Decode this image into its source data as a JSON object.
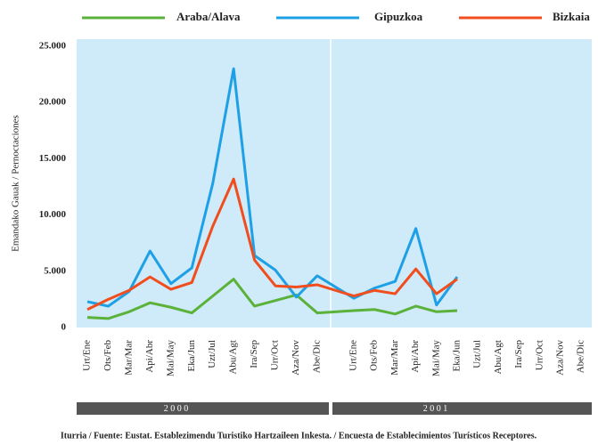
{
  "chart_data": {
    "type": "line",
    "y_label": "Emandako Gauak / Pernoctaciones",
    "categories": [
      "Urt/Ene",
      "Ots/Feb",
      "Mar/Mar",
      "Api/Abr",
      "Mai/May",
      "Eka/Jun",
      "Uzt/Jul",
      "Abu/Agt",
      "Ira/Sep",
      "Urr/Oct",
      "Aza/Nov",
      "Abe/Dic",
      "Urt/Ene",
      "Ots/Feb",
      "Mar/Mar",
      "Api/Abr",
      "Mai/May",
      "Eka/Jun",
      "Uzt/Jul",
      "Abu/Agt",
      "Ira/Sep",
      "Urr/Oct",
      "Aza/Nov",
      "Abe/Dic"
    ],
    "series": [
      {
        "name": "Araba/Alava",
        "color": "#5bb23a",
        "values": [
          900,
          800,
          1400,
          2200,
          1800,
          1300,
          2800,
          4300,
          1900,
          2400,
          2900,
          1300,
          1500,
          1600,
          1200,
          1900,
          1400,
          1500,
          null,
          null,
          null,
          null,
          null,
          null
        ]
      },
      {
        "name": "Gipuzkoa",
        "color": "#1ea0e6",
        "values": [
          2300,
          1900,
          3200,
          6800,
          3900,
          5300,
          12800,
          23000,
          6400,
          5100,
          2700,
          4600,
          2600,
          3500,
          4100,
          8800,
          2000,
          4500,
          null,
          null,
          null,
          null,
          null,
          null
        ]
      },
      {
        "name": "Bizkaia",
        "color": "#f04e1e",
        "values": [
          1600,
          2500,
          3300,
          4500,
          3400,
          4000,
          9000,
          13200,
          6000,
          3700,
          3600,
          3800,
          2800,
          3300,
          3000,
          5200,
          3000,
          4300,
          null,
          null,
          null,
          null,
          null,
          null
        ]
      }
    ],
    "ylim": [
      0,
      25000
    ],
    "yticks": [
      0,
      {
        "value": 5000,
        "label": "5.000"
      },
      {
        "value": 10000,
        "label": "10.000"
      },
      {
        "value": 15000,
        "label": "15.000"
      },
      {
        "value": 20000,
        "label": "20.000"
      },
      {
        "value": 25000,
        "label": "25.000"
      }
    ],
    "years": [
      "2 0 0 0",
      "2 0 0 1"
    ],
    "source": "Iturria / Fuente: Eustat. Establezimendu Turistiko Hartzaileen Inkesta. / Encuesta de Establecimientos Turísticos Receptores.",
    "grid": false
  }
}
